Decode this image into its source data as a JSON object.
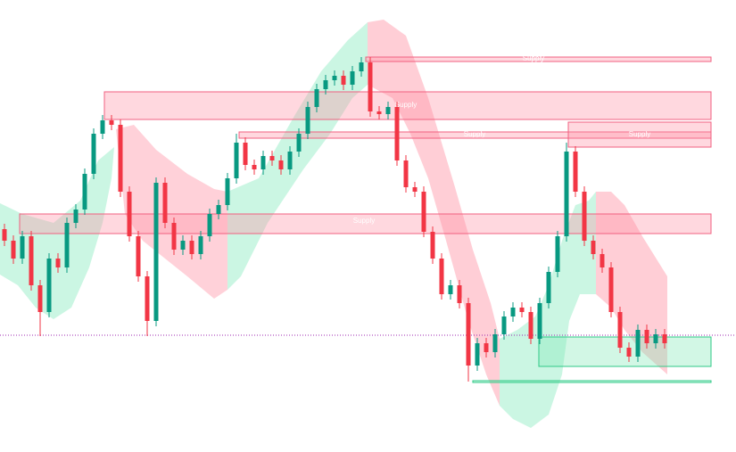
{
  "chart_data": {
    "type": "candlestick",
    "ylim": [
      0,
      507
    ],
    "up_color": "#089981",
    "down_color": "#f23645",
    "open": [
      250,
      237,
      217,
      242,
      187,
      157,
      217,
      207,
      257,
      272,
      312,
      357,
      372,
      367,
      292,
      242,
      197,
      147,
      302,
      257,
      227,
      237,
      222,
      242,
      267,
      277,
      307,
      347,
      322,
      317,
      332,
      327,
      317,
      337,
      357,
      387,
      407,
      417,
      422,
      412,
      427,
      437,
      382,
      379,
      387,
      327,
      297,
      292,
      247,
      217,
      177,
      187,
      167,
      97,
      122,
      112,
      132,
      152,
      162,
      157,
      127,
      167,
      202,
      242,
      337,
      292,
      237,
      222,
      207,
      157,
      117,
      107,
      137,
      122,
      132
    ],
    "high": [
      256,
      243,
      248,
      248,
      193,
      223,
      223,
      263,
      278,
      318,
      363,
      378,
      378,
      373,
      298,
      248,
      203,
      308,
      308,
      263,
      243,
      243,
      248,
      273,
      283,
      313,
      357,
      353,
      328,
      338,
      338,
      333,
      343,
      363,
      393,
      413,
      423,
      428,
      428,
      433,
      443,
      443,
      388,
      393,
      393,
      333,
      303,
      298,
      253,
      223,
      193,
      193,
      173,
      128,
      128,
      138,
      158,
      168,
      168,
      163,
      173,
      208,
      248,
      347,
      343,
      298,
      243,
      228,
      213,
      163,
      123,
      143,
      143,
      138,
      138
    ],
    "low": [
      231,
      211,
      211,
      181,
      130,
      151,
      201,
      201,
      251,
      266,
      306,
      351,
      361,
      286,
      236,
      191,
      130,
      141,
      251,
      221,
      221,
      216,
      216,
      236,
      261,
      271,
      301,
      316,
      311,
      311,
      321,
      311,
      311,
      331,
      351,
      381,
      401,
      411,
      406,
      406,
      421,
      376,
      373,
      373,
      321,
      291,
      286,
      241,
      211,
      171,
      171,
      161,
      79,
      91,
      106,
      106,
      126,
      146,
      151,
      121,
      121,
      161,
      196,
      236,
      286,
      231,
      216,
      201,
      151,
      111,
      101,
      101,
      116,
      116,
      116
    ],
    "close": [
      237,
      217,
      242,
      187,
      157,
      217,
      207,
      257,
      272,
      312,
      357,
      372,
      367,
      292,
      242,
      197,
      147,
      302,
      257,
      227,
      237,
      222,
      242,
      267,
      277,
      307,
      347,
      322,
      317,
      332,
      327,
      317,
      337,
      357,
      387,
      407,
      417,
      422,
      412,
      427,
      437,
      382,
      379,
      387,
      327,
      297,
      292,
      247,
      217,
      177,
      187,
      167,
      97,
      122,
      112,
      132,
      152,
      162,
      157,
      127,
      167,
      202,
      242,
      337,
      292,
      237,
      222,
      207,
      157,
      117,
      107,
      137,
      122,
      132,
      122
    ],
    "annotations": [
      "Supply",
      "Supply",
      "Supply",
      "Supply",
      "Supply"
    ]
  }
}
